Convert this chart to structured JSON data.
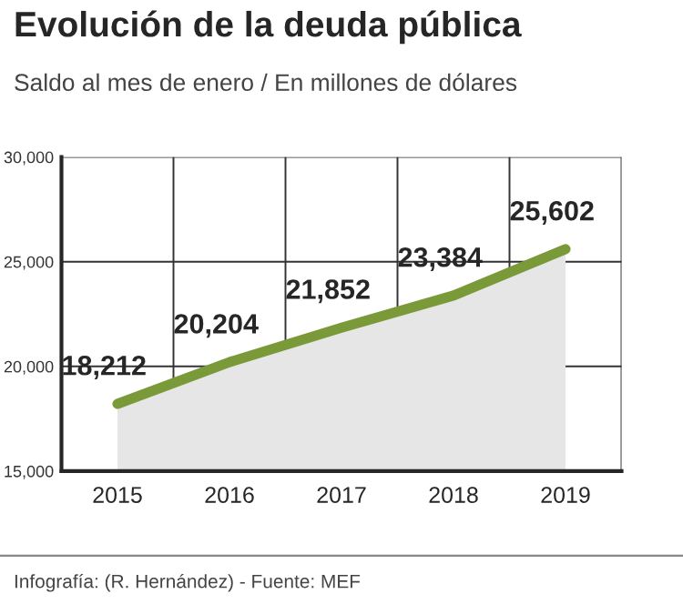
{
  "chart_data": {
    "type": "area",
    "title": "Evolución de la deuda pública",
    "subtitle": "Saldo al mes de enero / En millones de dólares",
    "categories": [
      "2015",
      "2016",
      "2017",
      "2018",
      "2019"
    ],
    "series": [
      {
        "color": "#7a9a3a",
        "values": [
          18212,
          20204,
          21852,
          23384,
          25602
        ],
        "value_labels": [
          "18,212",
          "20,204",
          "21,852",
          "23,384",
          "25,602"
        ]
      }
    ],
    "ylim": [
      15000,
      30000
    ],
    "yticks": [
      {
        "value": 15000,
        "label": "15,000"
      },
      {
        "value": 20000,
        "label": "20,000"
      },
      {
        "value": 25000,
        "label": "25,000"
      },
      {
        "value": 30000,
        "label": "30,000"
      }
    ],
    "grid": true,
    "annotations": [
      "Infografía: (R. Hernández) - Fuente: MEF"
    ]
  }
}
